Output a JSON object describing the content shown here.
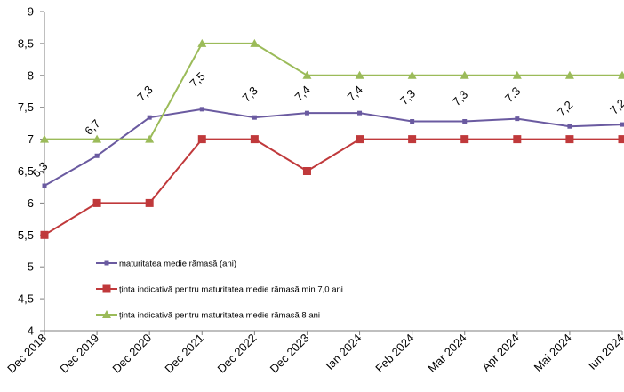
{
  "chart_data": {
    "type": "line",
    "categories": [
      "Dec 2018",
      "Dec 2019",
      "Dec 2020",
      "Dec 2021",
      "Dec 2022",
      "Dec 2023",
      "Ian 2024",
      "Feb 2024",
      "Mar 2024",
      "Apr 2024",
      "Mai 2024",
      "Iun 2024"
    ],
    "ylim": [
      4,
      9
    ],
    "yticks": [
      "4",
      "4,5",
      "5",
      "5,5",
      "6",
      "6,5",
      "7",
      "7,5",
      "8",
      "8,5",
      "9"
    ],
    "grid": false,
    "legend_position": "bottom-left inside plot",
    "series": [
      {
        "name": "maturitatea medie rămasă  (ani)",
        "color": "#6a5aa0",
        "marker": "small-square",
        "values": [
          6.27,
          6.74,
          7.34,
          7.47,
          7.34,
          7.41,
          7.41,
          7.28,
          7.28,
          7.32,
          7.2,
          7.23
        ],
        "data_labels": [
          "6,3",
          "6,7",
          "7,3",
          "7,5",
          "7,3",
          "7,4",
          "7,4",
          "7,3",
          "7,3",
          "7,3",
          "7,2",
          "7,2"
        ]
      },
      {
        "name": "ținta indicativă pentru maturitatea medie rămasă min 7,0 ani",
        "color": "#c0393b",
        "marker": "square",
        "values": [
          5.5,
          6.0,
          6.0,
          7.0,
          7.0,
          6.5,
          7.0,
          7.0,
          7.0,
          7.0,
          7.0,
          7.0
        ]
      },
      {
        "name": "ținta indicativă pentru maturitatea medie rămasă  8 ani",
        "color": "#9bbb59",
        "marker": "triangle",
        "values": [
          7.0,
          7.0,
          7.0,
          8.5,
          8.5,
          8.0,
          8.0,
          8.0,
          8.0,
          8.0,
          8.0,
          8.0
        ]
      }
    ]
  }
}
